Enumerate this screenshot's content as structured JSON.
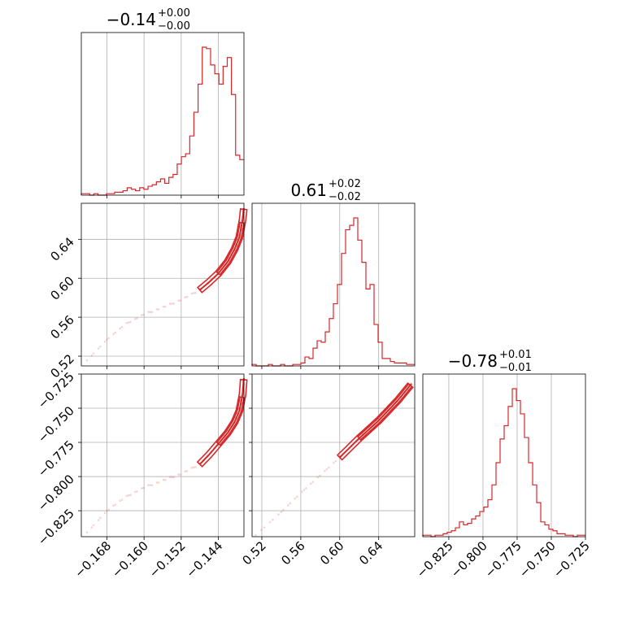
{
  "chart_data": {
    "type": "corner",
    "color": "#d62728",
    "parameters": [
      {
        "title_main": "−0.14",
        "title_sup": "+0.00",
        "title_sub": "−0.00",
        "range": [
          -0.1735,
          -0.1385
        ],
        "ticks": [
          -0.168,
          -0.16,
          -0.152,
          -0.144
        ],
        "tick_labels": [
          "−0.168",
          "−0.160",
          "−0.152",
          "−0.144"
        ]
      },
      {
        "title_main": "0.61",
        "title_sup": "+0.02",
        "title_sub": "−0.02",
        "range": [
          0.51,
          0.677
        ],
        "ticks": [
          0.52,
          0.56,
          0.6,
          0.64
        ],
        "tick_labels": [
          "0.52",
          "0.56",
          "0.60",
          "0.64"
        ]
      },
      {
        "title_main": "−0.78",
        "title_sup": "+0.01",
        "title_sub": "−0.01",
        "range": [
          -0.844,
          -0.725
        ],
        "ticks": [
          -0.825,
          -0.8,
          -0.775,
          -0.75,
          -0.725
        ],
        "tick_labels": [
          "−0.825",
          "−0.800",
          "−0.775",
          "−0.750",
          "−0.725"
        ]
      }
    ],
    "histograms": [
      [
        0.01,
        0.01,
        0.0,
        0.01,
        0.0,
        0.0,
        0.01,
        0.01,
        0.02,
        0.02,
        0.03,
        0.05,
        0.04,
        0.03,
        0.05,
        0.04,
        0.06,
        0.07,
        0.09,
        0.11,
        0.08,
        0.12,
        0.14,
        0.21,
        0.26,
        0.28,
        0.4,
        0.56,
        0.75,
        1.0,
        0.99,
        0.88,
        0.82,
        0.75,
        0.87,
        0.93,
        0.68,
        0.27,
        0.24
      ],
      [
        0.01,
        0.0,
        0.0,
        0.0,
        0.01,
        0.0,
        0.0,
        0.01,
        0.0,
        0.0,
        0.01,
        0.01,
        0.02,
        0.06,
        0.05,
        0.12,
        0.17,
        0.16,
        0.23,
        0.32,
        0.42,
        0.55,
        0.76,
        0.92,
        0.95,
        1.0,
        0.85,
        0.7,
        0.52,
        0.55,
        0.28,
        0.16,
        0.05,
        0.05,
        0.03,
        0.02,
        0.02,
        0.02,
        0.01,
        0.01
      ],
      [
        0.01,
        0.01,
        0.0,
        0.01,
        0.01,
        0.02,
        0.03,
        0.04,
        0.06,
        0.1,
        0.08,
        0.09,
        0.12,
        0.14,
        0.17,
        0.2,
        0.25,
        0.35,
        0.5,
        0.66,
        0.75,
        0.88,
        1.0,
        0.92,
        0.83,
        0.67,
        0.5,
        0.35,
        0.23,
        0.1,
        0.08,
        0.05,
        0.04,
        0.02,
        0.02,
        0.01,
        0.01,
        0.0,
        0.01,
        0.01
      ]
    ],
    "pairs": [
      {
        "x_param": 0,
        "y_param": 1,
        "curve": [
          [
            -0.172,
            0.517
          ],
          [
            -0.168,
            0.537
          ],
          [
            -0.164,
            0.553
          ],
          [
            -0.16,
            0.563
          ],
          [
            -0.156,
            0.57
          ],
          [
            -0.152,
            0.578
          ],
          [
            -0.148,
            0.588
          ],
          [
            -0.146,
            0.596
          ],
          [
            -0.144,
            0.605
          ],
          [
            -0.142,
            0.617
          ],
          [
            -0.1405,
            0.63
          ],
          [
            -0.1395,
            0.642
          ],
          [
            -0.1388,
            0.66
          ],
          [
            -0.1385,
            0.673
          ]
        ]
      },
      {
        "x_param": 0,
        "y_param": 2,
        "curve": [
          [
            -0.172,
            -0.84
          ],
          [
            -0.168,
            -0.825
          ],
          [
            -0.164,
            -0.815
          ],
          [
            -0.16,
            -0.808
          ],
          [
            -0.156,
            -0.803
          ],
          [
            -0.152,
            -0.798
          ],
          [
            -0.148,
            -0.791
          ],
          [
            -0.146,
            -0.784
          ],
          [
            -0.144,
            -0.776
          ],
          [
            -0.142,
            -0.768
          ],
          [
            -0.1405,
            -0.76
          ],
          [
            -0.1395,
            -0.752
          ],
          [
            -0.1388,
            -0.74
          ],
          [
            -0.1385,
            -0.727
          ]
        ]
      },
      {
        "x_param": 1,
        "y_param": 2,
        "curve": [
          [
            0.515,
            -0.842
          ],
          [
            0.54,
            -0.826
          ],
          [
            0.56,
            -0.812
          ],
          [
            0.58,
            -0.799
          ],
          [
            0.6,
            -0.786
          ],
          [
            0.62,
            -0.772
          ],
          [
            0.64,
            -0.759
          ],
          [
            0.66,
            -0.744
          ],
          [
            0.675,
            -0.731
          ]
        ]
      }
    ]
  }
}
